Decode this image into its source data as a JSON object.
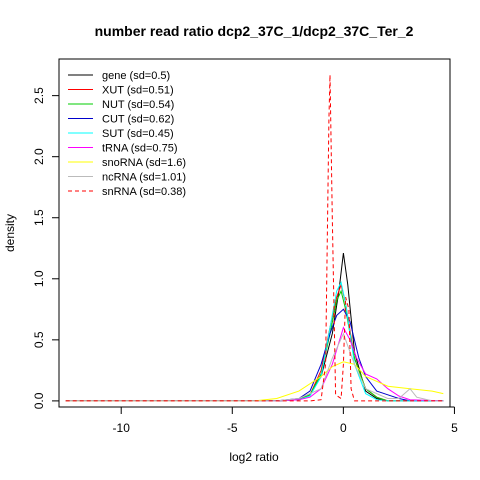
{
  "chart_data": {
    "type": "line",
    "title": "number read ratio dcp2_37C_1/dcp2_37C_Ter_2",
    "xlabel": "log2 ratio",
    "ylabel": "density",
    "xlim": [
      -12.8,
      4.8
    ],
    "ylim": [
      -0.05,
      2.8
    ],
    "xticks": [
      -10,
      -5,
      0,
      5
    ],
    "yticks": [
      0.0,
      0.5,
      1.0,
      1.5,
      2.0,
      2.5
    ],
    "grid": false,
    "legend_position": "top-left",
    "series": [
      {
        "name": "gene (sd=0.5)",
        "color": "#000000",
        "dash": "solid",
        "x": [
          -12.5,
          -3,
          -2,
          -1.5,
          -1,
          -0.5,
          -0.2,
          0,
          0.2,
          0.5,
          1,
          1.5,
          2,
          3,
          4.5
        ],
        "y": [
          0,
          0,
          0.01,
          0.05,
          0.2,
          0.55,
          0.9,
          1.21,
          0.95,
          0.4,
          0.08,
          0.02,
          0,
          0,
          0
        ]
      },
      {
        "name": "XUT (sd=0.51)",
        "color": "#ff0000",
        "dash": "solid",
        "x": [
          -12.5,
          -3,
          -2,
          -1.5,
          -1,
          -0.6,
          -0.3,
          -0.1,
          0.1,
          0.5,
          1,
          1.5,
          2,
          3,
          4.5
        ],
        "y": [
          0,
          0,
          0.01,
          0.05,
          0.25,
          0.6,
          0.85,
          0.95,
          0.8,
          0.35,
          0.1,
          0.03,
          0,
          0,
          0
        ]
      },
      {
        "name": "NUT (sd=0.54)",
        "color": "#00cc00",
        "dash": "solid",
        "x": [
          -12.5,
          -3,
          -2,
          -1.5,
          -1,
          -0.6,
          -0.3,
          -0.1,
          0.1,
          0.5,
          1,
          1.5,
          2,
          3,
          4.5
        ],
        "y": [
          0,
          0,
          0.01,
          0.05,
          0.22,
          0.55,
          0.82,
          0.9,
          0.75,
          0.35,
          0.1,
          0.03,
          0,
          0,
          0
        ]
      },
      {
        "name": "CUT (sd=0.62)",
        "color": "#0000cc",
        "dash": "solid",
        "x": [
          -12.5,
          -3,
          -2,
          -1.5,
          -1,
          -0.6,
          -0.3,
          0,
          0.3,
          0.7,
          1,
          1.5,
          2,
          2.5,
          3,
          4.5
        ],
        "y": [
          0,
          0,
          0.02,
          0.08,
          0.3,
          0.55,
          0.7,
          0.75,
          0.65,
          0.35,
          0.2,
          0.08,
          0.05,
          0.02,
          0,
          0
        ]
      },
      {
        "name": "SUT (sd=0.45)",
        "color": "#00ffff",
        "dash": "solid",
        "x": [
          -12.5,
          -3,
          -2,
          -1.5,
          -1,
          -0.6,
          -0.3,
          -0.1,
          0.1,
          0.5,
          1,
          1.5,
          2,
          3,
          4.5
        ],
        "y": [
          0,
          0,
          0.01,
          0.04,
          0.2,
          0.6,
          0.9,
          0.97,
          0.8,
          0.3,
          0.06,
          0.01,
          0,
          0,
          0
        ]
      },
      {
        "name": "tRNA (sd=0.75)",
        "color": "#ff00ff",
        "dash": "solid",
        "x": [
          -12.5,
          -3,
          -2,
          -1.5,
          -1,
          -0.5,
          0,
          0.3,
          0.6,
          1,
          1.5,
          2,
          2.5,
          3,
          4.5
        ],
        "y": [
          0,
          0,
          0.01,
          0.03,
          0.1,
          0.3,
          0.6,
          0.5,
          0.35,
          0.22,
          0.18,
          0.1,
          0.04,
          0.01,
          0
        ]
      },
      {
        "name": "snoRNA (sd=1.6)",
        "color": "#ffff00",
        "dash": "solid",
        "x": [
          -12.5,
          -4,
          -3,
          -2,
          -1,
          -0.5,
          0,
          0.5,
          1,
          2,
          3,
          4,
          4.5
        ],
        "y": [
          0,
          0,
          0.02,
          0.08,
          0.2,
          0.28,
          0.32,
          0.3,
          0.2,
          0.12,
          0.1,
          0.08,
          0.06
        ]
      },
      {
        "name": "ncRNA (sd=1.01)",
        "color": "#bbbbbb",
        "dash": "solid",
        "x": [
          -12.5,
          -3,
          -2,
          -1,
          -0.5,
          0,
          0.5,
          1,
          2,
          2.5,
          3,
          3.3,
          4,
          4.5
        ],
        "y": [
          0,
          0,
          0.02,
          0.1,
          0.35,
          0.55,
          0.3,
          0.1,
          0.02,
          0.02,
          0.1,
          0.03,
          0,
          0
        ]
      },
      {
        "name": "snRNA (sd=0.38)",
        "color": "#ff0000",
        "dash": "dashed",
        "x": [
          -12.5,
          -1.5,
          -1,
          -0.8,
          -0.65,
          -0.6,
          -0.5,
          -0.35,
          -0.1,
          0,
          0.1,
          0.25,
          0.35,
          0.5,
          1,
          4.5
        ],
        "y": [
          0,
          0,
          0.01,
          0.3,
          2.3,
          2.67,
          1.5,
          0.05,
          0.02,
          0.3,
          0.85,
          0.75,
          0.1,
          0,
          0,
          0
        ]
      }
    ]
  }
}
